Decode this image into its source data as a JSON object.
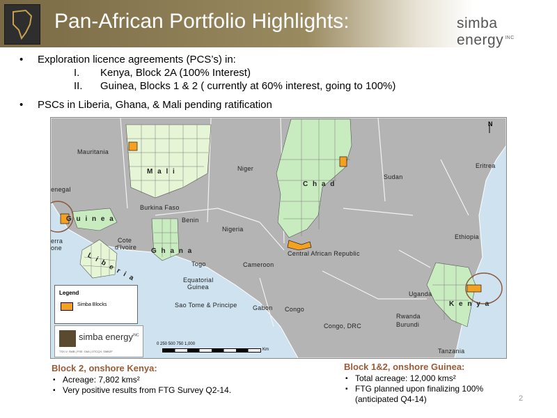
{
  "header": {
    "title": "Pan-African Portfolio Highlights:",
    "brand": "simba energy",
    "brand_suffix": "INC"
  },
  "bullets": {
    "b1": "Exploration licence agreements (PCS’s) in:",
    "sub": [
      {
        "num": "I.",
        "text": "Kenya, Block 2A (100% Interest)"
      },
      {
        "num": "II.",
        "text": "Guinea, Blocks 1 & 2 ( currently at 60% interest, going to 100%)"
      }
    ],
    "b2": "PSCs in Liberia, Ghana, & Mali pending ratification"
  },
  "map": {
    "labels": {
      "mauritania": "Mauritania",
      "mali": "M a l i",
      "niger": "Niger",
      "chad": "C h a d",
      "sudan": "Sudan",
      "eritrea": "Eritrea",
      "senegal": "enegal",
      "guinea": "G u i n e a",
      "burkina": "Burkina Faso",
      "benin": "Benin",
      "nigeria": "Nigeria",
      "cote1": "Cote",
      "cote2": "d'Ivoire",
      "ghana": "G h a n a",
      "togo": "Togo",
      "sierra1": "erra",
      "sierra2": "one",
      "liberia": "L i b e r i a",
      "car": "Central African Republic",
      "ethiopia": "Ethiopia",
      "cameroon": "Cameroon",
      "eq1": "Equatorial",
      "eq2": "Guinea",
      "saotome": "Sao Tome & Principe",
      "gabon": "Gabon",
      "congo": "Congo",
      "uganda": "Uganda",
      "kenya": "K e n y a",
      "rwanda": "Rwanda",
      "burundi": "Burundi",
      "drc": "Congo, DRC",
      "tanzania": "Tanzania"
    },
    "north": "N",
    "legend": {
      "title": "Legend",
      "item": "Simba Blocks",
      "swatch_color": "#f4a023"
    },
    "logo": {
      "name": "simba energy",
      "suffix": "INC",
      "info": "TSX-V: SMB | FSE: G6A | OTCQX: SMBZF"
    },
    "scale": {
      "ticks": "0    250    500    750    1,000",
      "unit": "Km"
    }
  },
  "captions": {
    "kenya": {
      "title": "Block 2, onshore Kenya:",
      "items": [
        "Acreage: 7,802 kms²",
        "Very positive results from FTG Survey Q2-14."
      ]
    },
    "guinea": {
      "title": "Block 1&2, onshore Guinea:",
      "items": [
        "Total acreage: 12,000 kms²",
        " FTG planned upon finalizing 100%"
      ],
      "cont": "(anticipated Q4-14)"
    }
  },
  "page_number": "2",
  "colors": {
    "accent": "#9b5a38",
    "block": "#f4a023",
    "land": "#b4b4b4",
    "licence": "#c8ecc0",
    "water": "#cfe2f0"
  }
}
